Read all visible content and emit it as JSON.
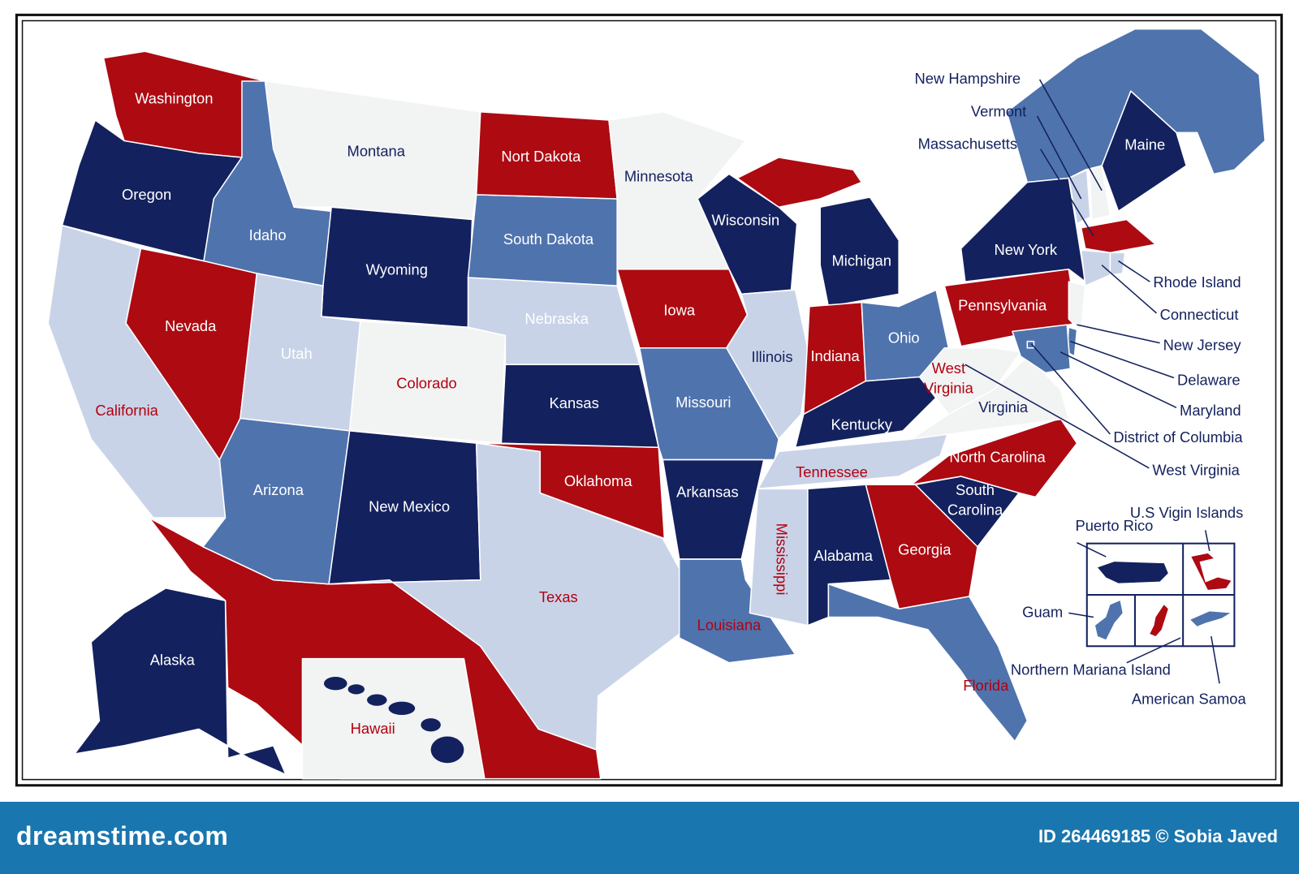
{
  "palette": {
    "navy": "#13215e",
    "red": "#ad0a12",
    "mid": "#4f73ad",
    "light": "#c9d3e8",
    "white": "#f2f3f3",
    "label_white": "#ffffff",
    "label_navy": "#13215e",
    "label_red": "#b3000f",
    "footer": "#1a76ae"
  },
  "states": [
    {
      "id": "wa",
      "name": "Washington",
      "fill": "red",
      "label": "label_white"
    },
    {
      "id": "or",
      "name": "Oregon",
      "fill": "navy",
      "label": "label_white"
    },
    {
      "id": "ca",
      "name": "California",
      "fill": "light",
      "label": "label_red"
    },
    {
      "id": "nv",
      "name": "Nevada",
      "fill": "red",
      "label": "label_white"
    },
    {
      "id": "id",
      "name": "Idaho",
      "fill": "mid",
      "label": "label_white"
    },
    {
      "id": "mt",
      "name": "Montana",
      "fill": "white",
      "label": "label_navy"
    },
    {
      "id": "wy",
      "name": "Wyoming",
      "fill": "navy",
      "label": "label_white"
    },
    {
      "id": "ut",
      "name": "Utah",
      "fill": "light",
      "label": "label_white"
    },
    {
      "id": "co",
      "name": "Colorado",
      "fill": "white",
      "label": "label_red"
    },
    {
      "id": "az",
      "name": "Arizona",
      "fill": "mid",
      "label": "label_white"
    },
    {
      "id": "nm",
      "name": "New Mexico",
      "fill": "navy",
      "label": "label_white"
    },
    {
      "id": "tx",
      "name": "Texas",
      "fill": "light",
      "label": "label_red"
    },
    {
      "id": "ok",
      "name": "Oklahoma",
      "fill": "red",
      "label": "label_white"
    },
    {
      "id": "ks",
      "name": "Kansas",
      "fill": "navy",
      "label": "label_white"
    },
    {
      "id": "ne",
      "name": "Nebraska",
      "fill": "light",
      "label": "label_white"
    },
    {
      "id": "sd",
      "name": "South Dakota",
      "fill": "mid",
      "label": "label_white"
    },
    {
      "id": "nd",
      "name": "Nort Dakota",
      "fill": "red",
      "label": "label_white"
    },
    {
      "id": "mn",
      "name": "Minnesota",
      "fill": "white",
      "label": "label_navy"
    },
    {
      "id": "ia",
      "name": "Iowa",
      "fill": "red",
      "label": "label_white"
    },
    {
      "id": "mo",
      "name": "Missouri",
      "fill": "mid",
      "label": "label_white"
    },
    {
      "id": "ar",
      "name": "Arkansas",
      "fill": "navy",
      "label": "label_white"
    },
    {
      "id": "la",
      "name": "Louisiana",
      "fill": "mid",
      "label": "label_red"
    },
    {
      "id": "wi",
      "name": "Wisconsin",
      "fill": "navy",
      "label": "label_white"
    },
    {
      "id": "il",
      "name": "Illinois",
      "fill": "light",
      "label": "label_navy"
    },
    {
      "id": "mi",
      "name": "Michigan",
      "fill": "navy",
      "label": "label_white"
    },
    {
      "id": "in",
      "name": "Indiana",
      "fill": "red",
      "label": "label_white"
    },
    {
      "id": "oh",
      "name": "Ohio",
      "fill": "mid",
      "label": "label_white"
    },
    {
      "id": "ky",
      "name": "Kentucky",
      "fill": "navy",
      "label": "label_white"
    },
    {
      "id": "tn",
      "name": "Tennessee",
      "fill": "light",
      "label": "label_red"
    },
    {
      "id": "ms",
      "name": "Mississippi",
      "fill": "light",
      "label": "label_red"
    },
    {
      "id": "al",
      "name": "Alabama",
      "fill": "navy",
      "label": "label_white"
    },
    {
      "id": "ga",
      "name": "Georgia",
      "fill": "red",
      "label": "label_white"
    },
    {
      "id": "fl",
      "name": "Florida",
      "fill": "mid",
      "label": "label_red"
    },
    {
      "id": "sc",
      "name": "South Carolina",
      "fill": "navy",
      "label": "label_white"
    },
    {
      "id": "nc",
      "name": "North Carolina",
      "fill": "red",
      "label": "label_white"
    },
    {
      "id": "va",
      "name": "Virginia",
      "fill": "white",
      "label": "label_navy"
    },
    {
      "id": "wv",
      "name": "West Virginia",
      "fill": "white",
      "label": "label_red"
    },
    {
      "id": "pa",
      "name": "Pennsylvania",
      "fill": "red",
      "label": "label_white"
    },
    {
      "id": "ny",
      "name": "New York",
      "fill": "navy",
      "label": "label_white"
    },
    {
      "id": "me",
      "name": "Maine",
      "fill": "navy",
      "label": "label_white"
    },
    {
      "id": "ak",
      "name": "Alaska",
      "fill": "navy",
      "label": "label_white"
    },
    {
      "id": "hi",
      "name": "Hawaii",
      "fill": "white",
      "label": "label_red"
    }
  ],
  "small_states": [
    {
      "id": "nh",
      "name": "New Hampshire",
      "fill": "white",
      "label": "label_navy"
    },
    {
      "id": "vt",
      "name": "Vermont",
      "fill": "light",
      "label": "label_navy"
    },
    {
      "id": "ma",
      "name": "Massachusetts",
      "fill": "red",
      "label": "label_navy"
    },
    {
      "id": "ri",
      "name": "Rhode Island",
      "fill": "light",
      "label": "label_navy"
    },
    {
      "id": "ct",
      "name": "Connecticut",
      "fill": "light",
      "label": "label_red"
    },
    {
      "id": "nj",
      "name": "New Jersey",
      "fill": "white",
      "label": "label_navy"
    },
    {
      "id": "de",
      "name": "Delaware",
      "fill": "mid",
      "label": "label_navy"
    },
    {
      "id": "md",
      "name": "Maryland",
      "fill": "mid",
      "label": "label_navy"
    },
    {
      "id": "dc",
      "name": "District of Columbia",
      "fill": "mid",
      "label": "label_navy"
    },
    {
      "id": "wv2",
      "name": "West Virginia",
      "fill": "white",
      "label": "label_navy"
    }
  ],
  "territories": [
    {
      "id": "pr",
      "name": "Puerto Rico",
      "fill": "navy"
    },
    {
      "id": "vi",
      "name": "U.S Vigin Islands",
      "fill": "red"
    },
    {
      "id": "gu",
      "name": "Guam",
      "fill": "mid"
    },
    {
      "id": "mp",
      "name": "Northern Mariana Island",
      "fill": "red"
    },
    {
      "id": "as",
      "name": "American Samoa",
      "fill": "mid"
    }
  ],
  "footer": {
    "brand": "dreamstime.com",
    "credit": "ID 264469185 © Sobia Javed"
  }
}
